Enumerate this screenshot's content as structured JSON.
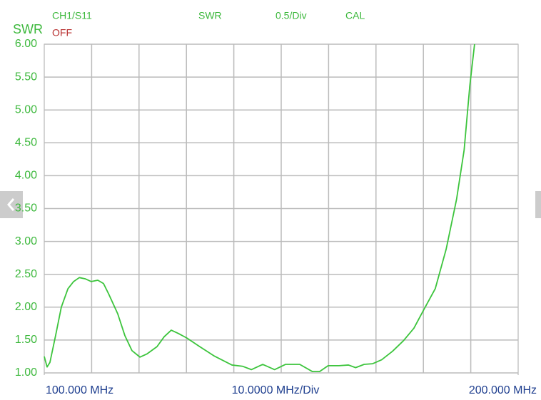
{
  "chart_data": {
    "type": "line",
    "channel_label": "CH1/S11",
    "format_label": "SWR",
    "scale_label": "0.5/Div",
    "cal_label": "CAL",
    "y_axis_label": "SWR",
    "status_label": "OFF",
    "x_div_label": "10.0000 MHz/Div",
    "xlim": [
      100,
      200
    ],
    "xticks": [
      {
        "value": 100,
        "label": "100.000 MHz"
      },
      {
        "value": 200,
        "label": "200.000 MHz"
      }
    ],
    "x_grid_step": 10,
    "ylim": [
      1,
      6
    ],
    "yticks": [
      {
        "value": 1,
        "label": "1.00"
      },
      {
        "value": 1.5,
        "label": "1.50"
      },
      {
        "value": 2,
        "label": "2.00"
      },
      {
        "value": 2.5,
        "label": "2.50"
      },
      {
        "value": 3,
        "label": "3.00"
      },
      {
        "value": 3.5,
        "label": "3.50"
      },
      {
        "value": 4,
        "label": "4.00"
      },
      {
        "value": 4.5,
        "label": "4.50"
      },
      {
        "value": 5,
        "label": "5.00"
      },
      {
        "value": 5.5,
        "label": "5.50"
      },
      {
        "value": 6,
        "label": "6.00"
      }
    ],
    "grid": true,
    "series": [
      {
        "name": "S11 SWR",
        "color": "#3cc43c",
        "x": [
          100,
          100.6,
          101.2,
          102.4,
          103.6,
          105.0,
          106.2,
          107.4,
          108.7,
          109.9,
          111.3,
          112.5,
          113.6,
          115.5,
          117.0,
          118.5,
          120.2,
          121.7,
          123.8,
          125.3,
          126.8,
          128.3,
          130.1,
          132.8,
          135.8,
          139.6,
          141.9,
          143.7,
          146.1,
          148.6,
          150.9,
          153.9,
          156.6,
          158.1,
          159.9,
          162.2,
          164.2,
          165.7,
          167.5,
          169.3,
          171.2,
          173.5,
          175.8,
          178.0,
          180.0,
          182.5,
          184.8,
          187.0,
          188.6,
          189.8,
          190.8
        ],
        "values": [
          1.25,
          1.09,
          1.16,
          1.57,
          2.0,
          2.28,
          2.39,
          2.45,
          2.43,
          2.39,
          2.41,
          2.36,
          2.2,
          1.9,
          1.57,
          1.34,
          1.24,
          1.29,
          1.4,
          1.55,
          1.65,
          1.6,
          1.53,
          1.4,
          1.26,
          1.12,
          1.1,
          1.05,
          1.13,
          1.05,
          1.13,
          1.13,
          1.02,
          1.02,
          1.11,
          1.11,
          1.12,
          1.08,
          1.13,
          1.14,
          1.2,
          1.33,
          1.49,
          1.68,
          1.95,
          2.28,
          2.88,
          3.64,
          4.39,
          5.37,
          6.0
        ]
      }
    ]
  }
}
